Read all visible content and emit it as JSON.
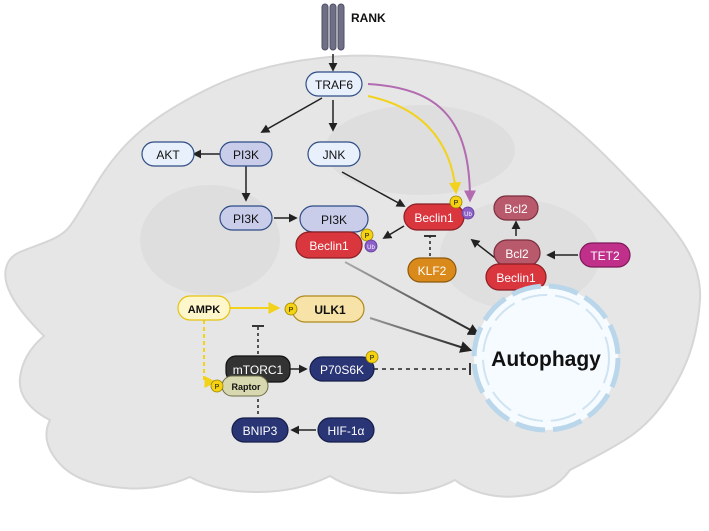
{
  "receptor": {
    "label": "RANK"
  },
  "nodes": {
    "traf6": "TRAF6",
    "akt": "AKT",
    "pi3k_top": "PI3K",
    "jnk": "JNK",
    "pi3k_mid": "PI3K",
    "pi3k_complex": "PI3K",
    "beclin1_complex": "Beclin1",
    "beclin1_main": "Beclin1",
    "klf2": "KLF2",
    "bcl2_top": "Bcl2",
    "bcl2_complex": "Bcl2",
    "beclin1_bcl2": "Beclin1",
    "tet2": "TET2",
    "ampk": "AMPK",
    "ulk1": "ULK1",
    "mtorc1": "mTORC1",
    "raptor": "Raptor",
    "p70s6k": "P70S6K",
    "bnip3": "BNIP3",
    "hif1a": "HIF-1α",
    "autophagy": "Autophagy"
  },
  "badges": {
    "phospho": "P",
    "ubiquitin": "Ub"
  },
  "colors": {
    "cell": "#e6e6e6",
    "blue_node": "#e8f1fb",
    "lavender_node": "#c9cdea",
    "red_node": "#d9363e",
    "bcl2_node": "#b85a6c",
    "orange_node": "#d98a1a",
    "magenta_node": "#c0308a",
    "ampk_node": "#fff7cc",
    "ulk1_node": "#f7e2a7",
    "mtorc1_node": "#333333",
    "navy_node": "#2a3575",
    "raptor_node": "#d8d8b0",
    "yellow_arrow": "#f2d21b",
    "purple_arrow": "#b26bb0",
    "phospho_badge": "#f5d312",
    "ubiquitin_badge": "#8b5fc7"
  }
}
